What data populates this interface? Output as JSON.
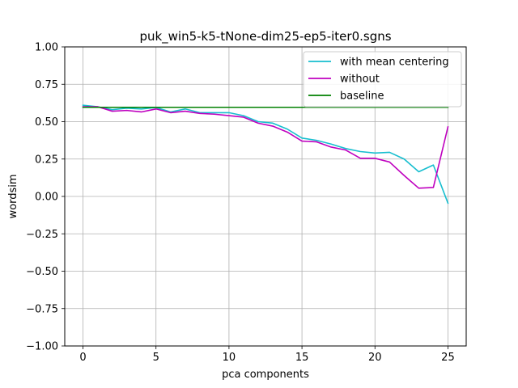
{
  "chart_data": {
    "type": "line",
    "title": "puk_win5-k5-tNone-dim25-ep5-iter0.sgns",
    "xlabel": "pca components",
    "ylabel": "wordsim",
    "xlim": [
      -1.25,
      26.25
    ],
    "ylim": [
      -1.0,
      1.0
    ],
    "xticks": [
      0,
      5,
      10,
      15,
      20,
      25
    ],
    "yticks": [
      -1.0,
      -0.75,
      -0.5,
      -0.25,
      0.0,
      0.25,
      0.5,
      0.75,
      1.0
    ],
    "xtick_labels": [
      "0",
      "5",
      "10",
      "15",
      "20",
      "25"
    ],
    "ytick_labels": [
      "−1.00",
      "−0.75",
      "−0.50",
      "−0.25",
      "0.00",
      "0.25",
      "0.50",
      "0.75",
      "1.00"
    ],
    "grid": true,
    "legend_position": "top-right",
    "x": [
      0,
      1,
      2,
      3,
      4,
      5,
      6,
      7,
      8,
      9,
      10,
      11,
      12,
      13,
      14,
      15,
      16,
      17,
      18,
      19,
      20,
      21,
      22,
      23,
      24,
      25
    ],
    "series": [
      {
        "name": "with mean centering",
        "color": "#17becf",
        "values": [
          0.61,
          0.6,
          0.58,
          0.59,
          0.585,
          0.595,
          0.565,
          0.585,
          0.56,
          0.56,
          0.56,
          0.54,
          0.5,
          0.49,
          0.45,
          0.39,
          0.375,
          0.35,
          0.32,
          0.3,
          0.29,
          0.295,
          0.25,
          0.165,
          0.21,
          -0.045
        ]
      },
      {
        "name": "without",
        "color": "#bf00bf",
        "values": [
          0.6,
          0.6,
          0.57,
          0.575,
          0.565,
          0.585,
          0.56,
          0.57,
          0.555,
          0.55,
          0.54,
          0.53,
          0.49,
          0.47,
          0.43,
          0.37,
          0.365,
          0.33,
          0.31,
          0.255,
          0.255,
          0.23,
          0.14,
          0.055,
          0.06,
          0.465
        ]
      },
      {
        "name": "baseline",
        "color": "#008000",
        "values": [
          0.596,
          0.596,
          0.596,
          0.596,
          0.596,
          0.596,
          0.596,
          0.596,
          0.596,
          0.596,
          0.596,
          0.596,
          0.596,
          0.596,
          0.596,
          0.596,
          0.596,
          0.596,
          0.596,
          0.596,
          0.596,
          0.596,
          0.596,
          0.596,
          0.596,
          0.596
        ]
      }
    ]
  }
}
